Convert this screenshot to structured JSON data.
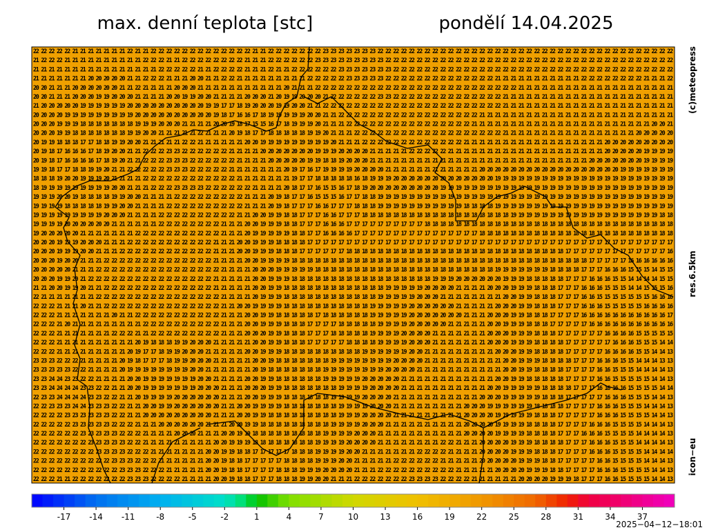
{
  "header": {
    "title": "max. denní teplota [stc]",
    "date": "pondělí 14.04.2025"
  },
  "side_labels": [
    "(c)meteopress",
    "res.6.5km",
    "icon−eu"
  ],
  "timestamp": "2025−04−12−18:01",
  "map": {
    "fill": "#f0a000",
    "rows": [
      "22 22 22 22 22 21 21 21 21 21 21 21 22 21 21 22 22 22 22 22 22 22 22 22 22 22 22 22 21 21 22 22 22 22 22 22 22 23 23 23 23 23 23 23 22 22 22 22 22 22 22 22 22 22 22 22 22 22 22 22 22 22 22 22 22 22 22 22 22 22 22 22 22 22 22 22 22 22 22 22 22 22",
      "21 22 22 22 21 21 21 21 21 21 21 21 21 21 22 22 22 21 21 22 22 22 22 22 22 22 22 21 21 21 22 22 22 22 22 22 23 23 23 23 23 23 23 23 23 22 22 22 22 22 22 22 22 22 22 22 22 22 22 22 22 22 22 22 22 22 22 22 22 22 22 22 22 22 22 22 22 22 22 22 22 22",
      "21 21 21 21 21 21 21 21 21 21 21 21 21 21 21 21 22 22 22 22 22 21 21 22 22 22 22 21 21 21 22 21 21 22 22 22 22 22 22 23 23 23 23 23 23 23 22 22 22 22 22 22 22 22 22 22 22 22 22 22 22 22 22 22 22 22 22 22 22 22 22 22 22 22 22 22 22 22 22 22 22 22",
      "21 21 21 21 21 21 21 20 20 20 20 20 21 21 22 22 22 21 21 21 20 20 21 21 22 22 21 21 21 21 21 21 21 21 21 22 22 22 22 22 23 23 23 23 23 22 22 22 22 22 22 22 22 22 22 22 22 22 22 21 21 21 21 21 21 21 21 21 21 21 22 22 22 22 22 22 22 22 21 21 21 22",
      "20 20 21 21 21 20 20 20 20 20 20 21 21 22 21 21 21 21 20 20 20 21 21 21 21 21 21 21 21 21 21 21 20 21 21 21 22 22 22 22 22 22 22 22 22 22 22 22 22 22 22 22 22 22 22 22 22 22 22 22 22 22 21 21 21 21 21 21 21 21 21 21 21 21 21 21 21 21 21 21 21 21",
      "20 20 21 21 21 20 20 20 19 19 20 20 20 21 21 21 21 20 20 19 19 20 20 21 21 21 21 20 20 20 21 20 19 19 20 20 20 21 22 22 22 22 22 22 23 23 22 22 22 22 22 22 22 22 22 22 22 22 22 22 21 21 21 21 21 21 21 21 21 21 21 21 21 21 21 21 21 21 21 21 21 21",
      "21 20 20 20 20 20 19 19 19 19 19 19 20 20 20 20 20 20 20 20 20 20 19 19 17 17 18 19 20 20 20 19 19 20 20 21 21 22 22 22 22 22 22 22 22 22 22 22 22 22 22 22 22 22 22 22 22 22 22 22 21 21 21 21 21 21 21 21 21 21 21 21 21 21 21 21 21 21 21 21 21 21",
      "20 20 20 20 19 19 19 19 19 19 19 19 19 20 20 20 20 20 20 20 20 20 20 19 18 17 16 16 17 18 19 19 19 19 19 20 20 21 21 22 22 22 22 22 22 22 22 22 22 22 22 22 22 22 22 22 22 21 21 21 21 21 21 21 21 21 21 21 21 21 21 21 21 21 21 21 21 21 21 21 21 21",
      "20 20 20 19 19 19 18 18 18 18 18 18 18 19 19 19 20 20 20 21 21 21 21 20 20 19 18 17 15 15 16 17 18 19 19 19 20 21 21 21 22 22 22 22 22 22 22 22 22 22 22 22 22 22 22 22 21 21 21 21 21 21 21 21 21 21 21 21 21 21 21 21 21 21 21 21 21 21 21 20 20 21",
      "20 20 20 19 19 18 18 18 18 18 18 18 19 19 20 20 21 21 21 21 21 22 21 21 21 20 19 18 17 17 18 18 18 18 18 19 19 20 21 21 21 22 22 22 22 22 22 22 22 22 22 22 22 22 22 22 22 22 22 22 21 21 21 21 21 21 21 21 21 21 21 21 21 21 21 21 21 20 20 20 20 20",
      "20 19 19 18 18 18 17 17 18 18 19 19 20 20 21 21 21 21 21 22 22 21 21 21 21 21 21 20 20 19 19 19 19 19 19 19 19 19 20 21 21 21 22 22 22 22 22 22 22 22 22 22 22 22 22 21 21 21 21 21 21 21 21 21 21 21 21 21 21 21 21 21 21 20 20 20 20 20 20 20 20 20",
      "20 19 18 17 16 16 16 17 18 19 20 20 21 21 22 22 22 23 23 22 22 22 22 22 22 21 21 21 21 20 20 20 20 20 20 20 19 19 19 20 20 20 20 21 21 21 21 21 22 22 22 22 22 21 21 21 21 21 21 21 21 21 21 21 21 21 21 21 21 21 21 21 21 20 20 20 20 20 19 19 19 19",
      "20 19 18 17 16 16 16 16 17 18 19 20 21 21 22 22 22 23 23 23 22 22 22 22 22 22 21 21 21 21 20 20 20 20 20 19 19 18 18 19 20 20 20 21 21 21 21 21 21 21 21 21 21 21 21 21 21 21 21 21 21 21 21 21 21 21 21 21 21 21 21 20 20 20 20 20 20 20 19 19 19 19",
      "19 19 18 17 17 18 18 19 19 20 21 21 22 22 22 22 22 23 23 23 22 22 22 22 22 21 21 21 21 21 21 21 20 19 17 16 17 19 19 19 19 20 20 20 20 21 21 21 21 21 21 21 21 21 21 21 21 20 20 20 20 20 20 20 20 20 20 20 20 20 20 20 20 20 20 19 19 19 19 19 19 19",
      "18 18 18 19 20 20 19 19 19 20 21 21 21 21 22 22 22 22 22 22 22 22 22 22 22 22 21 21 21 21 21 21 21 19 17 17 18 18 18 18 18 16 18 19 19 19 20 20 20 20 20 20 20 20 20 20 20 20 20 19 19 19 19 19 19 19 19 19 19 19 19 19 19 19 19 19 19 19 19 19 19 19",
      "18 19 19 19 19 19 19 19 19 19 20 20 21 21 21 22 22 22 23 23 23 23 22 22 22 22 22 22 21 21 21 21 20 18 17 17 16 15 15 16 17 18 19 20 20 20 20 20 20 20 20 20 19 19 19 19 19 19 19 19 19 19 19 19 19 19 19 19 19 19 19 19 19 19 19 19 19 19 19 19 19 19",
      "19 19 19 20 20 19 18 18 18 18 19 19 20 20 21 21 21 21 22 22 22 22 22 22 22 22 22 21 21 21 20 19 18 17 17 16 15 15 15 16 17 17 18 18 19 19 19 19 19 19 19 19 19 19 19 19 19 19 19 19 19 19 19 19 19 19 19 19 19 19 19 19 19 19 19 19 19 19 19 19 19 19",
      "19 19 19 19 18 18 18 18 18 19 19 20 20 21 21 21 21 22 22 22 22 22 22 22 22 22 22 21 21 21 20 19 18 17 17 17 16 16 17 17 17 18 18 18 19 19 19 19 19 19 19 19 19 19 19 18 18 18 18 19 19 19 19 19 19 19 19 19 19 19 19 19 19 19 19 19 19 19 19 19 19 19",
      "19 19 19 19 19 19 19 19 19 20 20 20 21 21 21 21 22 22 22 22 22 22 22 22 22 22 21 21 20 20 19 19 18 18 17 17 17 16 16 17 17 17 18 18 18 18 18 18 18 18 18 18 18 18 18 18 18 18 18 18 18 19 19 19 19 19 19 19 19 19 19 19 19 19 19 19 19 19 19 19 18 18",
      "19 19 19 19 20 20 20 20 20 20 21 21 21 21 21 21 22 22 22 22 22 22 22 22 21 21 21 20 20 19 19 19 18 18 17 17 17 16 16 16 17 17 17 17 17 17 17 17 17 17 18 18 18 18 18 18 18 18 18 18 18 18 18 18 18 18 18 18 18 18 18 18 18 18 18 18 18 18 18 18 18 18",
      "19 20 20 20 20 20 21 21 21 21 21 21 21 22 22 22 22 22 22 22 22 22 22 22 21 21 21 20 19 19 19 19 19 18 18 17 17 16 16 16 16 17 17 17 17 17 17 17 17 17 17 17 17 17 17 17 17 18 18 18 18 18 18 18 18 18 18 18 18 18 18 18 18 18 18 18 18 18 18 18 18 18",
      "20 20 20 19 19 19 20 20 20 21 21 21 22 22 22 22 22 22 22 22 22 22 22 21 21 21 20 20 19 19 19 18 18 18 18 17 17 17 17 17 17 17 17 17 17 17 17 17 17 17 17 17 17 17 17 17 17 17 17 17 17 17 17 17 17 17 17 17 17 17 17 17 17 17 17 17 17 17 17 17 17 17",
      "20 20 20 19 19 19 20 20 21 21 21 22 22 22 22 22 22 22 22 22 22 22 22 21 21 21 20 20 19 19 19 18 18 18 17 17 17 17 17 17 18 18 18 18 18 18 18 18 18 18 18 18 18 18 18 18 18 18 18 18 18 18 18 18 18 18 18 18 17 17 17 17 17 17 17 17 17 17 17 17 17 16",
      "20 20 20 19 20 20 21 21 21 22 22 22 22 22 22 22 22 22 22 22 22 22 22 21 21 21 21 20 20 19 19 19 19 18 18 18 18 18 18 18 18 18 18 18 18 18 18 18 18 18 18 18 18 18 18 18 18 18 18 18 18 18 18 18 18 18 18 18 18 18 18 17 17 17 17 17 16 16 16 16 16 16",
      "20 20 20 20 20 21 21 21 22 22 22 22 22 22 22 22 22 22 22 22 22 22 22 22 21 21 21 21 20 20 20 19 19 19 19 19 18 18 18 18 18 18 18 18 18 18 18 18 18 18 18 18 18 18 18 18 18 18 18 19 19 19 19 19 19 19 18 18 18 18 17 17 17 16 16 16 15 15 15 14 15 15",
      "20 20 20 19 19 20 21 22 22 22 22 22 22 22 22 22 22 22 22 22 22 22 22 21 21 21 21 21 20 20 19 19 19 18 18 18 18 18 18 18 18 18 18 18 18 18 18 18 18 18 18 19 19 19 20 20 20 20 20 20 19 19 19 18 18 18 18 18 17 17 17 16 16 16 15 15 14 14 14 14 15 15",
      "21 21 20 20 19 19 20 21 21 22 22 22 22 22 22 22 22 22 22 22 22 22 22 21 21 21 21 21 20 20 19 19 18 18 18 18 18 18 18 18 18 18 18 18 18 19 19 19 19 19 20 20 20 20 21 21 21 21 20 20 20 19 19 19 18 18 18 17 17 17 16 16 16 15 15 15 14 14 15 15 15 16",
      "22 21 21 21 21 21 21 21 22 22 22 22 22 22 22 22 22 22 22 22 22 22 22 22 21 21 21 21 20 19 19 19 18 18 18 18 18 18 18 18 18 18 18 18 19 19 19 19 19 20 20 20 21 21 21 21 21 21 21 21 20 20 19 19 18 18 18 17 17 17 16 16 15 15 15 15 15 15 15 16 16 16",
      "22 22 22 21 21 21 20 21 21 22 22 22 22 22 22 22 22 22 22 22 22 22 22 22 21 21 20 20 19 19 19 19 18 18 18 18 18 18 18 18 18 18 18 19 19 19 19 19 20 20 20 20 20 20 21 21 21 21 21 20 20 20 19 19 18 18 18 17 17 17 16 16 16 15 15 15 15 15 16 16 16 16",
      "22 22 22 21 21 21 21 21 21 21 20 21 21 22 22 22 22 22 22 22 22 22 22 22 21 21 21 20 20 19 19 18 18 18 18 18 17 18 18 18 18 18 18 19 19 19 19 19 20 20 20 20 20 20 20 21 21 21 20 20 20 19 19 18 18 18 17 17 17 17 16 16 16 16 16 16 16 16 16 16 16 17",
      "22 22 22 21 20 21 21 21 21 21 21 21 21 21 22 22 22 22 22 22 22 22 22 22 21 21 21 20 20 19 19 19 18 18 18 17 17 17 17 18 18 18 18 18 19 19 19 19 20 20 20 20 20 21 21 21 21 21 20 20 19 19 19 18 18 18 17 17 17 17 17 16 16 16 16 16 16 16 16 16 16 16",
      "22 22 22 21 21 21 21 21 21 21 22 22 22 21 21 22 22 22 22 22 22 22 22 22 21 21 21 20 20 20 19 19 18 18 18 17 17 17 18 18 18 18 18 19 19 19 19 20 20 20 20 21 21 21 21 21 21 21 20 20 20 19 19 19 18 18 18 17 17 17 17 17 17 16 16 16 16 15 15 15 15 15",
      "22 22 22 21 21 21 21 21 21 21 21 21 21 20 19 18 18 18 19 19 20 20 20 21 21 21 21 21 20 20 19 19 18 18 18 17 17 17 17 17 18 18 18 18 19 19 19 19 20 20 20 21 21 21 21 21 21 21 20 20 20 19 19 19 18 18 18 18 17 17 17 17 17 17 16 16 16 15 15 15 14 14",
      "22 22 22 21 21 21 21 21 21 21 21 21 20 19 17 17 18 19 19 20 20 20 21 21 21 21 21 20 20 19 19 19 18 18 18 18 18 18 18 18 18 18 19 19 19 19 19 19 20 20 21 21 21 21 21 21 21 21 21 20 20 20 19 19 18 18 18 18 17 17 17 17 17 16 16 16 16 15 15 14 14 13",
      "23 23 23 22 22 22 21 21 21 21 21 20 19 18 17 17 17 18 19 19 20 20 20 21 21 21 21 21 20 20 19 18 18 18 18 18 18 18 19 19 19 19 19 19 19 19 20 20 20 20 21 21 21 21 21 21 21 21 21 21 20 20 19 19 19 18 18 18 18 17 17 17 16 16 16 15 15 14 14 14 13 13",
      "23 23 23 23 23 22 22 21 21 21 21 20 19 19 19 19 19 19 19 19 20 20 21 21 21 21 21 21 20 19 18 18 18 18 18 18 18 19 19 19 19 19 19 19 19 20 20 20 20 21 21 21 21 21 21 21 21 21 21 21 20 20 19 19 18 18 18 18 17 17 17 17 16 16 15 15 15 14 14 14 14 13",
      "23 23 24 24 23 23 22 22 21 21 21 21 20 20 19 19 19 19 19 19 19 20 20 21 21 21 21 20 20 19 19 18 18 18 18 18 18 19 19 19 19 19 20 20 20 20 20 21 21 21 21 21 21 21 21 21 21 21 21 20 20 19 19 18 18 18 18 18 17 17 17 17 16 16 15 15 15 15 15 14 14 13",
      "23 23 24 24 24 24 23 23 22 22 21 21 20 20 19 19 19 19 19 19 19 20 20 20 21 21 21 20 20 20 19 19 18 18 18 18 18 18 18 19 19 19 19 20 20 20 20 21 21 21 21 21 21 21 21 21 21 21 20 20 19 19 19 19 19 18 18 18 18 17 17 17 16 16 16 16 15 15 15 15 14 14",
      "22 23 23 24 24 24 24 23 23 22 22 21 21 20 19 19 19 19 20 20 20 20 20 20 21 21 21 20 20 19 19 19 18 18 18 18 18 18 19 19 19 19 20 20 20 20 21 21 21 21 21 21 21 21 21 21 21 20 20 20 19 19 19 19 19 18 18 18 17 17 17 17 17 16 16 16 15 15 15 14 14 13",
      "22 22 23 23 23 24 24 23 23 23 22 22 21 21 20 20 19 19 20 20 20 20 20 20 21 21 20 20 19 19 19 19 18 18 18 18 18 18 18 19 19 19 19 20 20 20 21 21 21 21 21 21 21 21 21 20 20 20 19 19 19 19 19 19 18 18 18 18 17 17 17 17 16 16 16 15 15 15 14 14 14 13",
      "22 22 22 22 23 23 23 23 23 23 22 22 21 21 20 20 20 20 20 20 20 20 20 21 21 21 20 20 19 19 18 18 18 18 18 18 18 18 18 19 19 19 20 20 20 20 21 21 21 21 21 21 21 21 21 20 20 20 20 19 19 19 19 19 18 18 18 17 17 17 17 17 16 16 16 15 15 15 15 14 14 13",
      "22 22 22 22 22 23 23 23 23 23 22 22 22 21 21 21 20 20 20 20 20 20 21 21 21 20 20 19 19 18 18 18 18 18 18 18 18 18 19 19 19 19 20 20 20 21 21 21 21 21 21 21 21 21 21 20 20 20 20 19 19 19 19 18 18 18 18 17 17 17 17 16 16 16 15 15 15 15 14 14 14 13",
      "22 22 22 22 22 22 23 23 23 23 23 22 22 22 21 21 21 21 20 20 20 21 21 21 20 20 19 19 18 18 18 18 18 18 18 18 18 19 19 19 19 20 20 20 21 21 21 21 21 21 21 21 21 21 21 20 20 20 20 19 19 19 19 18 18 18 18 17 17 17 16 16 16 15 15 15 15 14 14 14 14 13",
      "22 22 22 22 22 22 22 23 23 23 23 23 22 22 21 21 21 21 21 21 21 21 21 20 20 19 19 19 18 18 18 18 18 18 18 18 19 19 19 19 20 20 20 20 21 21 21 21 21 21 21 21 22 22 21 21 21 20 20 20 20 19 19 19 18 18 18 18 17 17 17 16 16 16 15 15 15 14 14 14 14 13",
      "22 22 22 22 22 22 22 22 23 23 23 23 22 22 22 21 21 21 21 21 21 21 20 20 19 19 18 18 17 17 17 17 17 18 18 18 19 19 19 19 20 20 21 21 21 21 21 21 21 22 22 22 22 21 21 21 21 20 20 20 20 19 19 19 18 18 18 17 17 17 17 16 16 16 15 15 15 15 14 14 14 14",
      "22 22 22 22 22 22 22 22 22 22 23 23 23 22 22 22 21 21 21 21 21 21 20 20 19 18 18 17 17 17 17 17 18 18 18 18 19 19 19 20 20 21 21 21 21 21 22 22 22 22 22 22 21 21 21 21 21 20 20 20 20 20 19 19 19 18 18 17 17 17 17 17 16 16 15 15 15 15 14 14 14 13",
      "22 22 22 22 22 22 22 22 22 22 22 23 23 23 22 22 22 21 21 21 21 21 20 20 19 18 18 17 17 17 17 18 18 18 19 19 19 20 20 20 20 21 21 21 22 22 22 22 22 22 22 22 22 22 21 21 21 21 21 20 20 20 20 19 19 19 18 18 17 17 17 17 16 16 16 15 15 15 15 14 14 13",
      "22 22 22 21 21 22 22 22 22 22 22 22 23 23 23 22 22 22 22 21 21 21 21 20 20 19 18 18 17 17 17 18 18 18 19 19 20 20 21 21 21 22 22 22 22 22 22 22 23 23 23 23 22 22 22 22 21 21 21 21 21 21 20 20 20 20 19 19 19 18 17 17 17 16 16 15 15 15 15 14 14 13"
    ]
  },
  "colorbar": {
    "lim": [
      -20,
      40
    ],
    "ticks": [
      -17,
      -14,
      -11,
      -8,
      -5,
      -2,
      1,
      4,
      7,
      10,
      13,
      16,
      19,
      22,
      25,
      28,
      31,
      34,
      37
    ],
    "stops": [
      [
        -20,
        "#0000ff"
      ],
      [
        -14,
        "#0070f0"
      ],
      [
        -8,
        "#00b0f0"
      ],
      [
        -2,
        "#00e0c8"
      ],
      [
        0,
        "#00e060"
      ],
      [
        1,
        "#00c000"
      ],
      [
        4,
        "#80e000"
      ],
      [
        10,
        "#d0d800"
      ],
      [
        16,
        "#f0c000"
      ],
      [
        22,
        "#f09800"
      ],
      [
        27,
        "#f06800"
      ],
      [
        30,
        "#f02000"
      ],
      [
        32,
        "#f00040"
      ],
      [
        40,
        "#f000c0"
      ]
    ]
  }
}
